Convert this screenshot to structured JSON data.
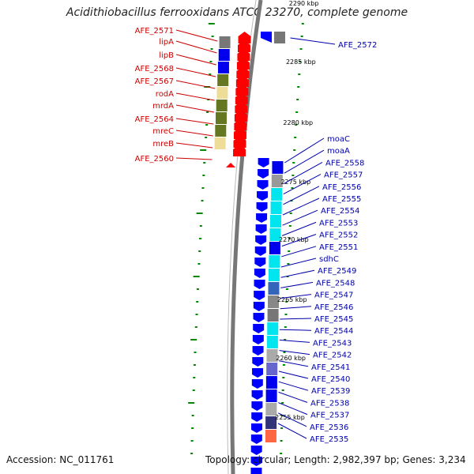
{
  "title": "Acidithiobacillus ferrooxidans ATCC 23270, complete genome",
  "accession_text": "Accession: NC_011761",
  "summary_text": "Topology: circular; Length: 2,982,397 bp; Genes: 3,234",
  "colors": {
    "reverse_cds": "#ff0000",
    "forward_cds": "#0000ff",
    "left_label": "#cc0000",
    "right_label": "#0000aa",
    "ticks": "#008800",
    "backbone": "#777777"
  },
  "kbp_markers": [
    "2290 kbp",
    "2285 kbp",
    "2280 kbp",
    "2275 kbp",
    "2270 kbp",
    "2265 kbp",
    "2260 kbp",
    "2255 kbp"
  ],
  "left_genes": [
    "AFE_2571",
    "lipA",
    "lipB",
    "AFE_2568",
    "AFE_2567",
    "rodA",
    "mrdA",
    "AFE_2564",
    "mreC",
    "mreB",
    "AFE_2560"
  ],
  "right_genes": [
    "AFE_2572",
    "moaC",
    "moaA",
    "AFE_2558",
    "AFE_2557",
    "AFE_2556",
    "AFE_2555",
    "AFE_2554",
    "AFE_2553",
    "AFE_2552",
    "AFE_2551",
    "sdhC",
    "AFE_2549",
    "AFE_2548",
    "AFE_2547",
    "AFE_2546",
    "AFE_2545",
    "AFE_2544",
    "AFE_2543",
    "AFE_2542",
    "AFE_2541",
    "AFE_2540",
    "AFE_2539",
    "AFE_2538",
    "AFE_2537",
    "AFE_2536",
    "AFE_2535"
  ]
}
